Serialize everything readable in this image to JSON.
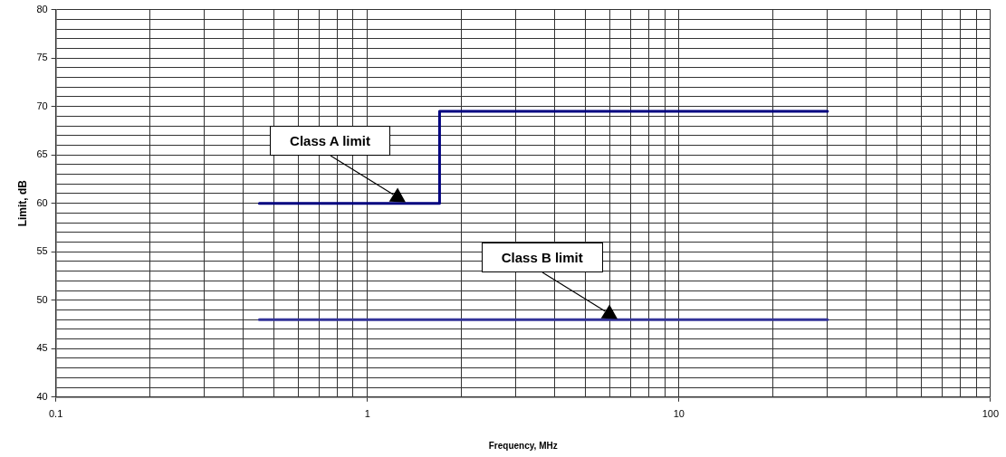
{
  "chart_data": {
    "type": "line",
    "xlabel": "Frequency, MHz",
    "ylabel": "Limit, dB",
    "log": "x",
    "grid": true,
    "legend": false,
    "marker": "none",
    "xlim": [
      0.1,
      100
    ],
    "xticks": [
      0.1,
      {
        "value": 0.2,
        "label": null
      },
      {
        "value": 0.3,
        "label": null
      },
      {
        "value": 0.4,
        "label": null
      },
      {
        "value": 0.5,
        "label": null
      },
      {
        "value": 0.6,
        "label": null
      },
      {
        "value": 0.7,
        "label": null
      },
      {
        "value": 0.8,
        "label": null
      },
      {
        "value": 0.9,
        "label": null
      },
      1,
      {
        "value": 2,
        "label": null
      },
      {
        "value": 3,
        "label": null
      },
      {
        "value": 4,
        "label": null
      },
      {
        "value": 5,
        "label": null
      },
      {
        "value": 6,
        "label": null
      },
      {
        "value": 7,
        "label": null
      },
      {
        "value": 8,
        "label": null
      },
      {
        "value": 9,
        "label": null
      },
      10,
      {
        "value": 20,
        "label": null
      },
      {
        "value": 30,
        "label": null
      },
      {
        "value": 40,
        "label": null
      },
      {
        "value": 50,
        "label": null
      },
      {
        "value": 60,
        "label": null
      },
      {
        "value": 70,
        "label": null
      },
      {
        "value": 80,
        "label": null
      },
      {
        "value": 90,
        "label": null
      },
      100
    ],
    "ylim": [
      40,
      80
    ],
    "yticks": [
      40,
      {
        "value": 41,
        "label": null
      },
      {
        "value": 42,
        "label": null
      },
      {
        "value": 43,
        "label": null
      },
      {
        "value": 44,
        "label": null
      },
      45,
      {
        "value": 46,
        "label": null
      },
      {
        "value": 47,
        "label": null
      },
      {
        "value": 48,
        "label": null
      },
      {
        "value": 49,
        "label": null
      },
      50,
      {
        "value": 51,
        "label": null
      },
      {
        "value": 52,
        "label": null
      },
      {
        "value": 53,
        "label": null
      },
      {
        "value": 54,
        "label": null
      },
      55,
      {
        "value": 56,
        "label": null
      },
      {
        "value": 57,
        "label": null
      },
      {
        "value": 58,
        "label": null
      },
      {
        "value": 59,
        "label": null
      },
      60,
      {
        "value": 61,
        "label": null
      },
      {
        "value": 62,
        "label": null
      },
      {
        "value": 63,
        "label": null
      },
      {
        "value": 64,
        "label": null
      },
      65,
      {
        "value": 66,
        "label": null
      },
      {
        "value": 67,
        "label": null
      },
      {
        "value": 68,
        "label": null
      },
      {
        "value": 69,
        "label": null
      },
      70,
      {
        "value": 71,
        "label": null
      },
      {
        "value": 72,
        "label": null
      },
      {
        "value": 73,
        "label": null
      },
      {
        "value": 74,
        "label": null
      },
      75,
      {
        "value": 76,
        "label": null
      },
      {
        "value": 77,
        "label": null
      },
      {
        "value": 78,
        "label": null
      },
      {
        "value": 79,
        "label": null
      },
      80
    ],
    "series": [
      {
        "type": "step",
        "color": "#000080",
        "x": [
          0.45,
          1.705,
          30
        ],
        "values": [
          60,
          69.5,
          69.5
        ]
      },
      {
        "type": "line",
        "color": "#333399",
        "x": [
          0.45,
          30
        ],
        "values": [
          48,
          48
        ]
      }
    ],
    "annotations": [
      "Class A limit",
      "Class B limit"
    ]
  }
}
